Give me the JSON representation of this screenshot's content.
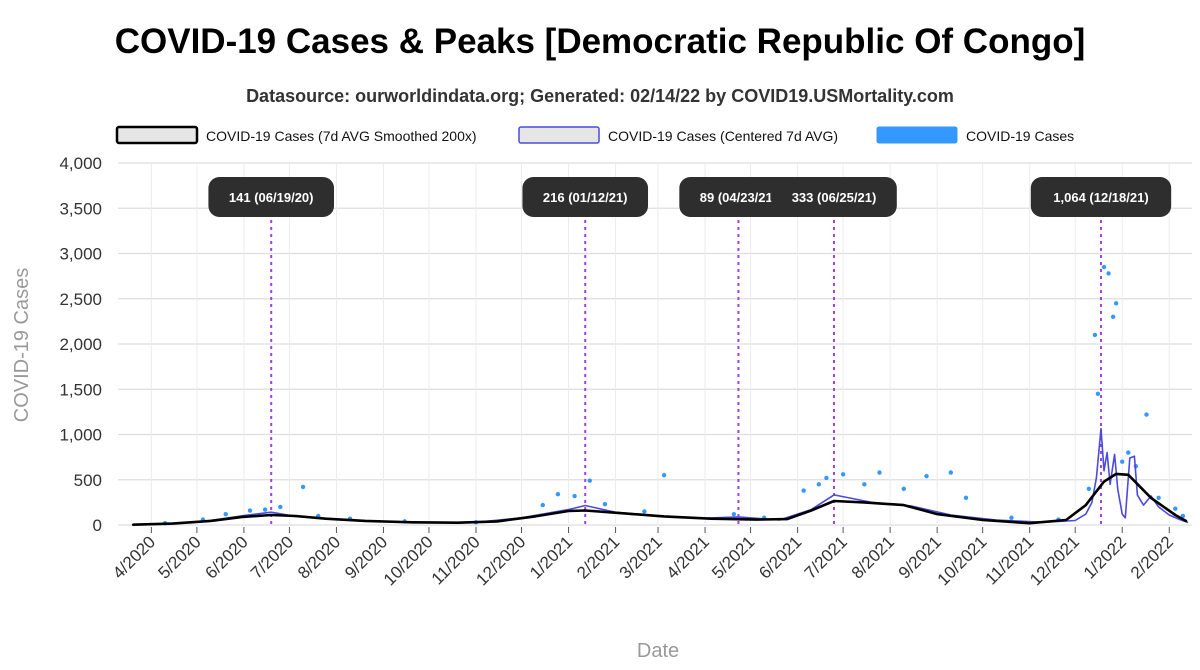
{
  "chart_data": {
    "type": "line",
    "title": "COVID-19 Cases & Peaks [Democratic Republic Of Congo]",
    "subtitle": "Datasource: ourworldindata.org; Generated: 02/14/22 by COVID19.USMortality.com",
    "xlabel": "Date",
    "ylabel": "COVID-19 Cases",
    "xlim": [
      "2020-03-10",
      "2022-02-16"
    ],
    "ylim": [
      0,
      4000
    ],
    "y_ticks": [
      0,
      500,
      1000,
      1500,
      2000,
      2500,
      3000,
      3500,
      4000
    ],
    "y_tick_labels": [
      "0",
      "500",
      "1,000",
      "1,500",
      "2,000",
      "2,500",
      "3,000",
      "3,500",
      "4,000"
    ],
    "x_ticks": [
      "2020-04-01",
      "2020-05-01",
      "2020-06-01",
      "2020-07-01",
      "2020-08-01",
      "2020-09-01",
      "2020-10-01",
      "2020-11-01",
      "2020-12-01",
      "2021-01-01",
      "2021-02-01",
      "2021-03-01",
      "2021-04-01",
      "2021-05-01",
      "2021-06-01",
      "2021-07-01",
      "2021-08-01",
      "2021-09-01",
      "2021-10-01",
      "2021-11-01",
      "2021-12-01",
      "2022-01-01",
      "2022-02-01"
    ],
    "x_tick_labels": [
      "4/2020",
      "5/2020",
      "6/2020",
      "7/2020",
      "8/2020",
      "9/2020",
      "10/2020",
      "11/2020",
      "12/2020",
      "1/2021",
      "2/2021",
      "3/2021",
      "4/2021",
      "5/2021",
      "6/2021",
      "7/2021",
      "8/2021",
      "9/2021",
      "10/2021",
      "11/2021",
      "12/2021",
      "1/2022",
      "2/2022"
    ],
    "grid": true,
    "legend_position": "top",
    "legend": [
      {
        "name": "COVID-19 Cases (7d AVG Smoothed 200x)",
        "color": "#000000",
        "style": "line"
      },
      {
        "name": "COVID-19 Cases (Centered 7d AVG)",
        "color": "#4a4ae0",
        "style": "line"
      },
      {
        "name": "COVID-19 Cases",
        "color": "#3399ff",
        "style": "points"
      }
    ],
    "series": [
      {
        "name": "COVID-19 Cases (7d AVG Smoothed 200x)",
        "color": "#000000",
        "points": [
          [
            "2020-03-20",
            3
          ],
          [
            "2020-04-15",
            15
          ],
          [
            "2020-05-10",
            45
          ],
          [
            "2020-05-31",
            90
          ],
          [
            "2020-06-19",
            110
          ],
          [
            "2020-07-05",
            100
          ],
          [
            "2020-07-25",
            70
          ],
          [
            "2020-08-20",
            45
          ],
          [
            "2020-09-20",
            30
          ],
          [
            "2020-10-20",
            25
          ],
          [
            "2020-11-15",
            40
          ],
          [
            "2020-12-10",
            95
          ],
          [
            "2021-01-01",
            155
          ],
          [
            "2021-01-12",
            160
          ],
          [
            "2021-02-05",
            130
          ],
          [
            "2021-03-05",
            95
          ],
          [
            "2021-04-05",
            70
          ],
          [
            "2021-05-05",
            60
          ],
          [
            "2021-05-25",
            65
          ],
          [
            "2021-06-10",
            160
          ],
          [
            "2021-06-25",
            265
          ],
          [
            "2021-07-15",
            250
          ],
          [
            "2021-08-10",
            220
          ],
          [
            "2021-09-01",
            120
          ],
          [
            "2021-10-01",
            55
          ],
          [
            "2021-11-01",
            20
          ],
          [
            "2021-11-25",
            55
          ],
          [
            "2021-12-08",
            220
          ],
          [
            "2021-12-20",
            480
          ],
          [
            "2021-12-28",
            565
          ],
          [
            "2022-01-05",
            555
          ],
          [
            "2022-01-20",
            300
          ],
          [
            "2022-02-05",
            110
          ],
          [
            "2022-02-12",
            45
          ]
        ]
      },
      {
        "name": "COVID-19 Cases (Centered 7d AVG)",
        "color": "#4a4ae0",
        "points": [
          [
            "2020-03-20",
            4
          ],
          [
            "2020-04-15",
            18
          ],
          [
            "2020-05-10",
            50
          ],
          [
            "2020-06-01",
            105
          ],
          [
            "2020-06-19",
            141
          ],
          [
            "2020-07-05",
            95
          ],
          [
            "2020-08-01",
            60
          ],
          [
            "2020-09-01",
            35
          ],
          [
            "2020-10-01",
            28
          ],
          [
            "2020-11-01",
            30
          ],
          [
            "2020-12-01",
            80
          ],
          [
            "2021-01-01",
            170
          ],
          [
            "2021-01-12",
            216
          ],
          [
            "2021-02-01",
            140
          ],
          [
            "2021-03-01",
            100
          ],
          [
            "2021-04-01",
            75
          ],
          [
            "2021-04-23",
            89
          ],
          [
            "2021-05-20",
            55
          ],
          [
            "2021-06-10",
            170
          ],
          [
            "2021-06-25",
            333
          ],
          [
            "2021-07-20",
            250
          ],
          [
            "2021-08-15",
            210
          ],
          [
            "2021-09-10",
            110
          ],
          [
            "2021-10-10",
            55
          ],
          [
            "2021-11-10",
            30
          ],
          [
            "2021-12-01",
            50
          ],
          [
            "2021-12-08",
            120
          ],
          [
            "2021-12-12",
            250
          ],
          [
            "2021-12-15",
            520
          ],
          [
            "2021-12-18",
            1064
          ],
          [
            "2021-12-20",
            600
          ],
          [
            "2021-12-22",
            800
          ],
          [
            "2021-12-24",
            450
          ],
          [
            "2021-12-27",
            780
          ],
          [
            "2021-12-29",
            400
          ],
          [
            "2022-01-01",
            120
          ],
          [
            "2022-01-03",
            80
          ],
          [
            "2022-01-06",
            740
          ],
          [
            "2022-01-09",
            760
          ],
          [
            "2022-01-11",
            330
          ],
          [
            "2022-01-15",
            220
          ],
          [
            "2022-01-20",
            320
          ],
          [
            "2022-01-25",
            200
          ],
          [
            "2022-02-01",
            110
          ],
          [
            "2022-02-08",
            60
          ],
          [
            "2022-02-13",
            30
          ]
        ]
      },
      {
        "name": "COVID-19 Cases",
        "color": "#3399ff",
        "points": [
          [
            "2020-04-10",
            20
          ],
          [
            "2020-05-05",
            60
          ],
          [
            "2020-05-20",
            120
          ],
          [
            "2020-06-05",
            160
          ],
          [
            "2020-06-15",
            170
          ],
          [
            "2020-06-25",
            200
          ],
          [
            "2020-07-10",
            420
          ],
          [
            "2020-07-20",
            100
          ],
          [
            "2020-08-10",
            70
          ],
          [
            "2020-09-15",
            40
          ],
          [
            "2020-11-01",
            30
          ],
          [
            "2020-12-15",
            220
          ],
          [
            "2020-12-25",
            340
          ],
          [
            "2021-01-05",
            320
          ],
          [
            "2021-01-15",
            490
          ],
          [
            "2021-01-25",
            230
          ],
          [
            "2021-02-20",
            150
          ],
          [
            "2021-03-05",
            550
          ],
          [
            "2021-04-20",
            120
          ],
          [
            "2021-05-10",
            80
          ],
          [
            "2021-06-05",
            380
          ],
          [
            "2021-06-15",
            450
          ],
          [
            "2021-06-20",
            520
          ],
          [
            "2021-07-01",
            560
          ],
          [
            "2021-07-15",
            450
          ],
          [
            "2021-07-25",
            580
          ],
          [
            "2021-08-10",
            400
          ],
          [
            "2021-08-25",
            540
          ],
          [
            "2021-09-10",
            580
          ],
          [
            "2021-09-20",
            300
          ],
          [
            "2021-10-20",
            80
          ],
          [
            "2021-11-20",
            60
          ],
          [
            "2021-12-10",
            400
          ],
          [
            "2021-12-14",
            2100
          ],
          [
            "2021-12-16",
            1450
          ],
          [
            "2021-12-20",
            2850
          ],
          [
            "2021-12-23",
            2780
          ],
          [
            "2021-12-26",
            2300
          ],
          [
            "2021-12-28",
            2450
          ],
          [
            "2022-01-01",
            700
          ],
          [
            "2022-01-05",
            800
          ],
          [
            "2022-01-10",
            650
          ],
          [
            "2022-01-17",
            1220
          ],
          [
            "2022-01-25",
            300
          ],
          [
            "2022-02-05",
            180
          ],
          [
            "2022-02-10",
            100
          ]
        ]
      }
    ],
    "peaks": [
      {
        "date": "2020-06-19",
        "label": "141 (06/19/20)"
      },
      {
        "date": "2021-01-12",
        "label": "216 (01/12/21)"
      },
      {
        "date": "2021-04-23",
        "label": "89 (04/23/21)"
      },
      {
        "date": "2021-06-25",
        "label": "333 (06/25/21)"
      },
      {
        "date": "2021-12-18",
        "label": "1,064 (12/18/21)"
      }
    ]
  }
}
